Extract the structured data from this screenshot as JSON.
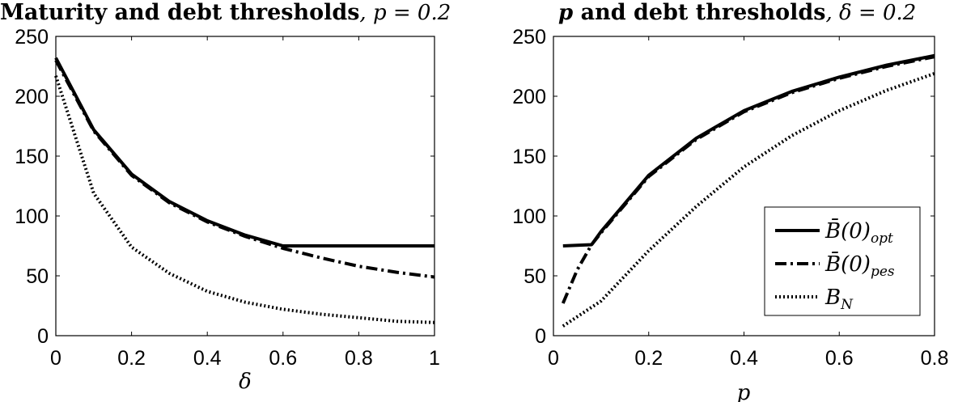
{
  "chart_data": [
    {
      "type": "line",
      "title_text": "Maturity and debt thresholds",
      "title_math": ", p = 0.2",
      "xlabel": "δ",
      "ylabel": "",
      "xlim": [
        0,
        1
      ],
      "ylim": [
        0,
        250
      ],
      "xticks": [
        0,
        0.2,
        0.4,
        0.6,
        0.8,
        1
      ],
      "xtick_labels": [
        "0",
        "0.2",
        "0.4",
        "0.6",
        "0.8",
        "1"
      ],
      "yticks": [
        0,
        50,
        100,
        150,
        200,
        250
      ],
      "ytick_labels": [
        "0",
        "50",
        "100",
        "150",
        "200",
        "250"
      ],
      "grid": false,
      "legend": "none",
      "series": [
        {
          "key": "opt",
          "style": "solid",
          "x": [
            0,
            0.1,
            0.2,
            0.3,
            0.4,
            0.5,
            0.6,
            0.7,
            0.8,
            0.9,
            1.0
          ],
          "y": [
            232,
            172,
            135,
            112,
            96,
            84,
            75,
            75,
            75,
            75,
            75
          ]
        },
        {
          "key": "pes",
          "style": "dashdot",
          "x": [
            0,
            0.1,
            0.2,
            0.3,
            0.4,
            0.5,
            0.6,
            0.7,
            0.8,
            0.9,
            1.0
          ],
          "y": [
            230,
            171,
            134,
            111,
            95,
            83,
            73,
            65,
            58,
            53,
            49
          ]
        },
        {
          "key": "bn",
          "style": "dotted",
          "x": [
            0,
            0.1,
            0.2,
            0.3,
            0.4,
            0.5,
            0.6,
            0.7,
            0.8,
            0.9,
            1.0
          ],
          "y": [
            217,
            119,
            74,
            52,
            37,
            28,
            22,
            18,
            15,
            12,
            11
          ]
        }
      ]
    },
    {
      "type": "line",
      "title_text": "and debt thresholds",
      "title_math_prefix": "p",
      "title_math": ", δ = 0.2",
      "xlabel": "p",
      "ylabel": "",
      "xlim": [
        0,
        0.8
      ],
      "ylim": [
        0,
        250
      ],
      "xticks": [
        0,
        0.2,
        0.4,
        0.6,
        0.8
      ],
      "xtick_labels": [
        "0",
        "0.2",
        "0.4",
        "0.6",
        "0.8"
      ],
      "yticks": [
        0,
        50,
        100,
        150,
        200,
        250
      ],
      "ytick_labels": [
        "0",
        "50",
        "100",
        "150",
        "200",
        "250"
      ],
      "grid": false,
      "legend": "bottom-right",
      "series": [
        {
          "key": "opt",
          "name_main": "B̄(0)",
          "name_sub": "opt",
          "style": "solid",
          "x": [
            0.02,
            0.08,
            0.1,
            0.2,
            0.3,
            0.4,
            0.5,
            0.6,
            0.7,
            0.8
          ],
          "y": [
            75,
            76,
            87,
            134,
            165,
            188,
            204,
            216,
            226,
            234
          ]
        },
        {
          "key": "pes",
          "name_main": "B̄(0)",
          "name_sub": "pes",
          "style": "dashdot",
          "x": [
            0.02,
            0.05,
            0.08,
            0.1,
            0.2,
            0.3,
            0.4,
            0.5,
            0.6,
            0.7,
            0.8
          ],
          "y": [
            27,
            55,
            76,
            86,
            133,
            164,
            187,
            203,
            215,
            225,
            233
          ]
        },
        {
          "key": "bn",
          "name_main": "B",
          "name_sub": "N",
          "style": "dotted",
          "x": [
            0.02,
            0.1,
            0.2,
            0.3,
            0.4,
            0.5,
            0.6,
            0.7,
            0.8
          ],
          "y": [
            8,
            29,
            71,
            108,
            141,
            167,
            188,
            205,
            219
          ]
        }
      ]
    }
  ]
}
